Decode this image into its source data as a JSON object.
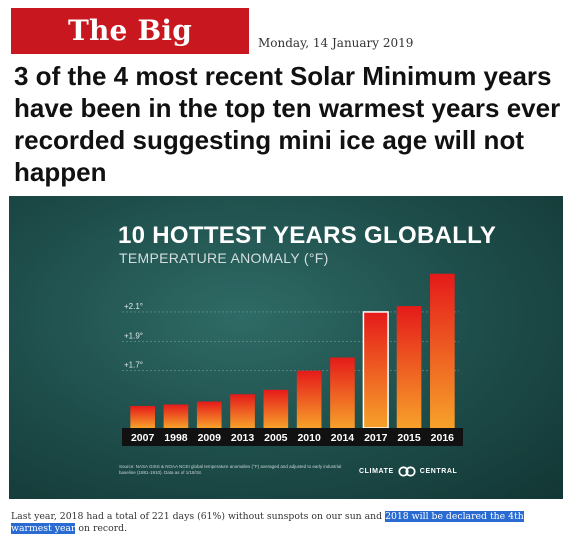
{
  "blog": {
    "name": "The Big Wobble",
    "date": "Monday, 14 January 2019"
  },
  "post": {
    "title": "3 of the 4 most recent Solar Minimum years have been in the top ten warmest years ever recorded suggesting mini ice age will not happen"
  },
  "colors": {
    "logo_bg": "#c8171e",
    "chart_bg": "#1d4c49",
    "bar_light": "#f7a12a",
    "bar_dark": "#e51a1a",
    "selection": "#2a6bd1"
  },
  "chart_data": {
    "type": "bar",
    "title": "10 HOTTEST YEARS GLOBALLY",
    "subtitle": "TEMPERATURE ANOMALY (°F)",
    "categories": [
      "2007",
      "1998",
      "2009",
      "2013",
      "2005",
      "2010",
      "2014",
      "2017",
      "2015",
      "2016"
    ],
    "values": [
      1.46,
      1.47,
      1.49,
      1.54,
      1.57,
      1.7,
      1.79,
      2.1,
      2.14,
      2.36
    ],
    "highlighted": [
      "2017"
    ],
    "ylim": [
      1.31,
      2.44
    ],
    "yticks": [
      1.7,
      1.9,
      2.1
    ],
    "ytick_labels": [
      "+1.7°",
      "+1.9°",
      "+2.1°"
    ],
    "grid": true,
    "source": "Source: NASA GISS & NOAA NCEI global temperature anomalies (°F) averaged and adjusted to early industrial baseline (1881-1910). Data as of 1/18/18.",
    "brand": "CLIMATE CENTRAL"
  },
  "caption": {
    "before": "Last year, 2018 had a total of 221 days (61%) without sunspots on our sun and ",
    "highlight": "2018 will be declared the 4th warmest year",
    "after": " on record."
  }
}
